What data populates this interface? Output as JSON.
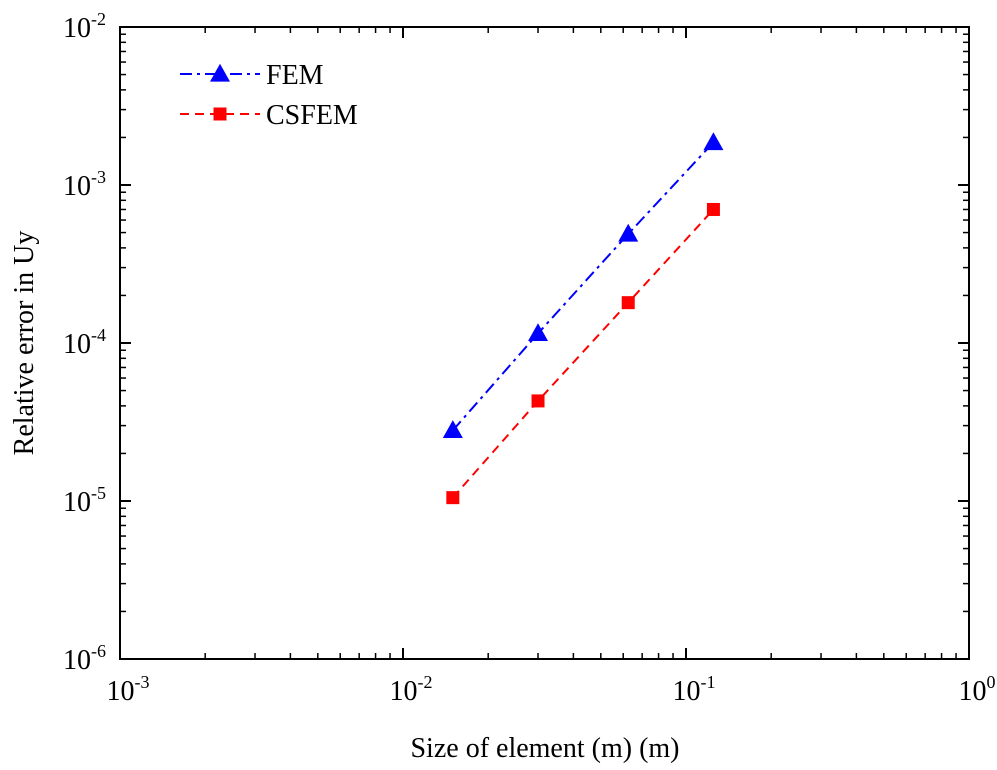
{
  "chart_data": {
    "type": "line",
    "xlabel": "Size of element (m) (m)",
    "ylabel": "Relative error in Uy",
    "xscale": "log",
    "yscale": "log",
    "xlim": [
      0.001,
      1
    ],
    "ylim": [
      1e-06,
      0.01
    ],
    "x_ticks": [
      {
        "value": 0.001,
        "base": "10",
        "exp": "-3"
      },
      {
        "value": 0.01,
        "base": "10",
        "exp": "-2"
      },
      {
        "value": 0.1,
        "base": "10",
        "exp": "-1"
      },
      {
        "value": 1,
        "base": "10",
        "exp": "0"
      }
    ],
    "y_ticks": [
      {
        "value": 1e-06,
        "base": "10",
        "exp": "-6"
      },
      {
        "value": 1e-05,
        "base": "10",
        "exp": "-5"
      },
      {
        "value": 0.0001,
        "base": "10",
        "exp": "-4"
      },
      {
        "value": 0.001,
        "base": "10",
        "exp": "-3"
      },
      {
        "value": 0.01,
        "base": "10",
        "exp": "-2"
      }
    ],
    "legend_position": "top-left",
    "grid": false,
    "series": [
      {
        "name": "FEM",
        "color": "#0000ff",
        "marker": "triangle",
        "line_style": "dash-dot",
        "x": [
          0.015,
          0.03,
          0.0625,
          0.125
        ],
        "y": [
          2.8e-05,
          0.000115,
          0.00049,
          0.00186
        ]
      },
      {
        "name": "CSFEM",
        "color": "#ff0000",
        "marker": "square",
        "line_style": "dash",
        "x": [
          0.015,
          0.03,
          0.0625,
          0.125
        ],
        "y": [
          1.05e-05,
          4.3e-05,
          0.00018,
          0.0007
        ]
      }
    ]
  }
}
